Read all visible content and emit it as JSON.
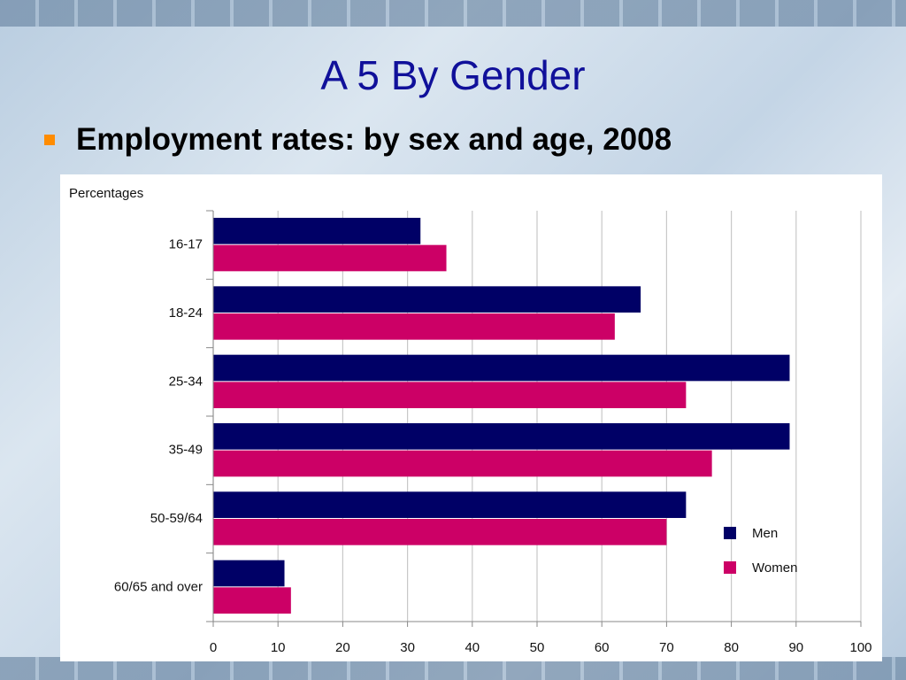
{
  "title": "A 5 By Gender",
  "bullet": "Employment rates: by sex and age, 2008",
  "chart_data": {
    "type": "hbar",
    "axis_label": "Percentages",
    "categories": [
      "16-17",
      "18-24",
      "25-34",
      "35-49",
      "50-59/64",
      "60/65 and over"
    ],
    "series": [
      {
        "name": "Men",
        "color": "#000066",
        "values": [
          32,
          66,
          89,
          89,
          73,
          11
        ]
      },
      {
        "name": "Women",
        "color": "#cc0066",
        "values": [
          36,
          62,
          73,
          77,
          70,
          12
        ]
      }
    ],
    "xlim": [
      0,
      100
    ],
    "xticks": [
      0,
      10,
      20,
      30,
      40,
      50,
      60,
      70,
      80,
      90,
      100
    ],
    "grid": true,
    "legend": "lower right"
  }
}
